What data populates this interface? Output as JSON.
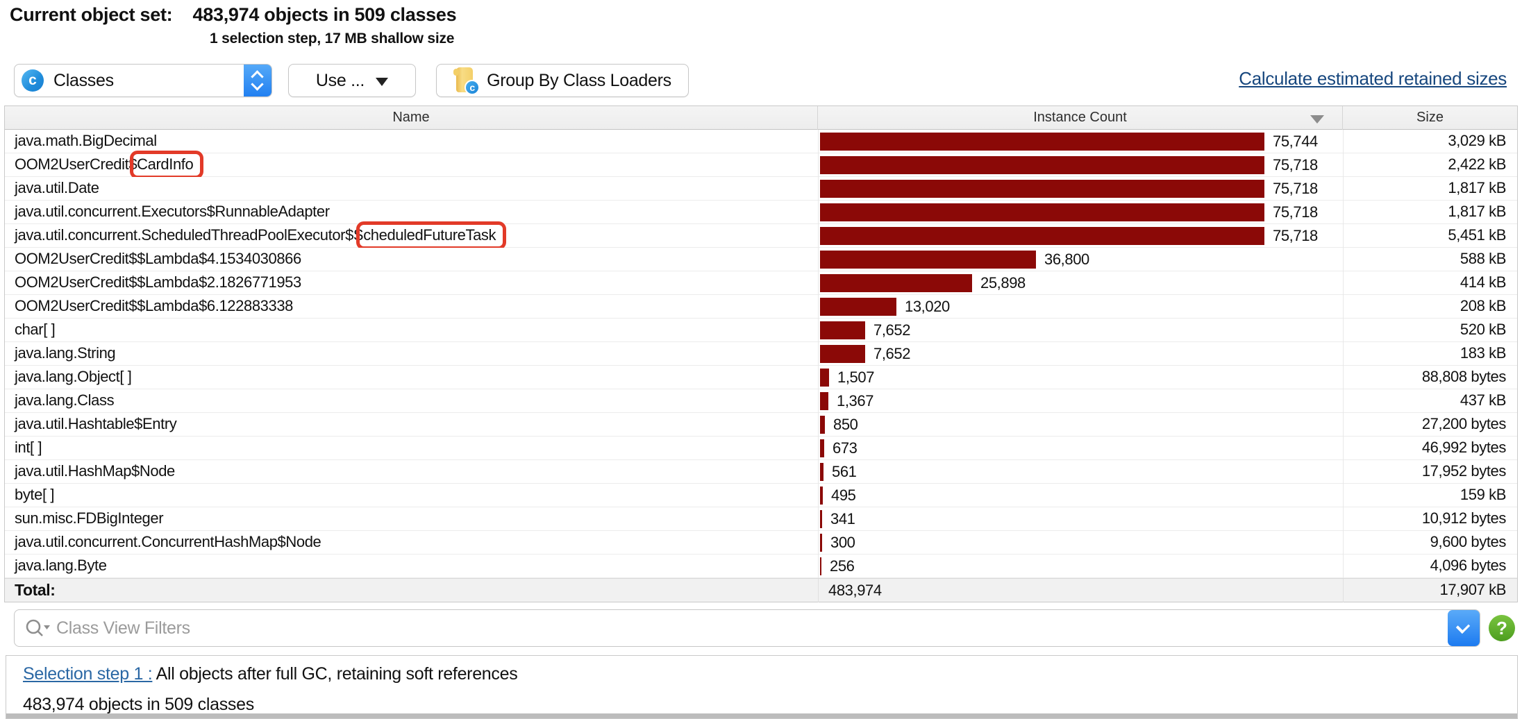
{
  "header": {
    "title_label": "Current object set:",
    "title_value": "483,974 objects in 509 classes",
    "subtitle": "1 selection step, 17 MB shallow size"
  },
  "toolbar": {
    "view_selector": {
      "label": "Classes",
      "icon": "class-icon"
    },
    "use_button": "Use ...",
    "group_button": "Group By Class Loaders",
    "retained_link": "Calculate estimated retained sizes"
  },
  "table": {
    "columns": [
      "Name",
      "Instance Count",
      "Size"
    ],
    "sort": {
      "column": "Instance Count",
      "direction": "descending"
    },
    "max_count": 75744,
    "rows": [
      {
        "name": "java.math.BigDecimal",
        "count": 75744,
        "count_label": "75,744",
        "size": "3,029 kB"
      },
      {
        "name": "OOM2UserCredit$CardInfo",
        "count": 75718,
        "count_label": "75,718",
        "size": "2,422 kB",
        "highlight": {
          "start": 15,
          "length": 8,
          "style": "red-annotation-box"
        }
      },
      {
        "name": "java.util.Date",
        "count": 75718,
        "count_label": "75,718",
        "size": "1,817 kB"
      },
      {
        "name": "java.util.concurrent.Executors$RunnableAdapter",
        "count": 75718,
        "count_label": "75,718",
        "size": "1,817 kB"
      },
      {
        "name": "java.util.concurrent.ScheduledThreadPoolExecutor$ScheduledFutureTask",
        "count": 75718,
        "count_label": "75,718",
        "size": "5,451 kB",
        "highlight": {
          "start": 50,
          "length": 18,
          "style": "red-annotation-box"
        }
      },
      {
        "name": "OOM2UserCredit$$Lambda$4.1534030866",
        "count": 36800,
        "count_label": "36,800",
        "size": "588 kB"
      },
      {
        "name": "OOM2UserCredit$$Lambda$2.1826771953",
        "count": 25898,
        "count_label": "25,898",
        "size": "414 kB"
      },
      {
        "name": "OOM2UserCredit$$Lambda$6.122883338",
        "count": 13020,
        "count_label": "13,020",
        "size": "208 kB"
      },
      {
        "name": "char[ ]",
        "count": 7652,
        "count_label": "7,652",
        "size": "520 kB"
      },
      {
        "name": "java.lang.String",
        "count": 7652,
        "count_label": "7,652",
        "size": "183 kB"
      },
      {
        "name": "java.lang.Object[ ]",
        "count": 1507,
        "count_label": "1,507",
        "size": "88,808 bytes"
      },
      {
        "name": "java.lang.Class",
        "count": 1367,
        "count_label": "1,367",
        "size": "437 kB"
      },
      {
        "name": "java.util.Hashtable$Entry",
        "count": 850,
        "count_label": "850",
        "size": "27,200 bytes"
      },
      {
        "name": "int[ ]",
        "count": 673,
        "count_label": "673",
        "size": "46,992 bytes"
      },
      {
        "name": "java.util.HashMap$Node",
        "count": 561,
        "count_label": "561",
        "size": "17,952 bytes"
      },
      {
        "name": "byte[ ]",
        "count": 495,
        "count_label": "495",
        "size": "159 kB"
      },
      {
        "name": "sun.misc.FDBigInteger",
        "count": 341,
        "count_label": "341",
        "size": "10,912 bytes"
      },
      {
        "name": "java.util.concurrent.ConcurrentHashMap$Node",
        "count": 300,
        "count_label": "300",
        "size": "9,600 bytes"
      },
      {
        "name": "java.lang.Byte",
        "count": 256,
        "count_label": "256",
        "size": "4,096 bytes"
      }
    ],
    "total": {
      "label": "Total:",
      "count_label": "483,974",
      "size": "17,907 kB"
    }
  },
  "filter": {
    "placeholder": "Class View Filters"
  },
  "help_button": "?",
  "selection": {
    "link": "Selection step 1 :",
    "text": " All objects after full GC, retaining soft references",
    "summary": "483,974 objects in 509 classes"
  },
  "colors": {
    "bar": "#8b0907",
    "annotation": "#e23a28",
    "retained_link": "#17477e",
    "selection_link": "#2a67a4",
    "dropdown_blue": "#2180f1",
    "help_green": "#4d9e1f"
  }
}
